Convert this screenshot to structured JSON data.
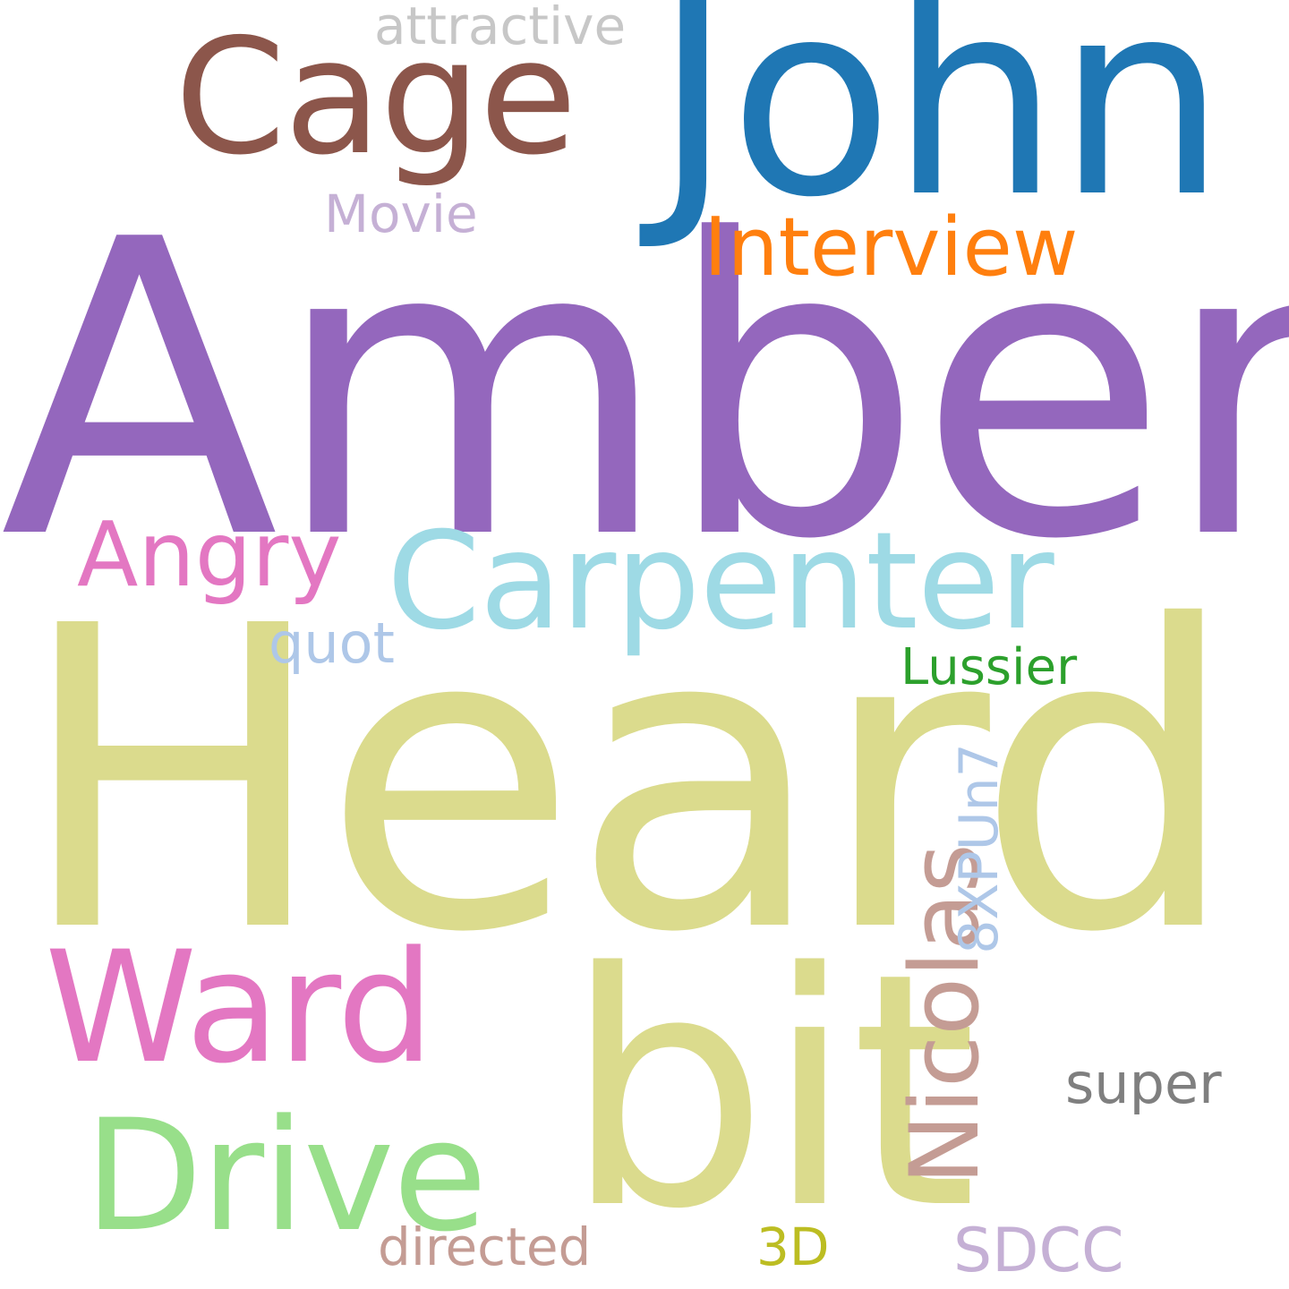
{
  "words": {
    "amber": {
      "text": "Amber",
      "color": "#9467bd"
    },
    "heard": {
      "text": "Heard",
      "color": "#dbdb8d"
    },
    "john": {
      "text": "John",
      "color": "#1f77b4"
    },
    "cage": {
      "text": "Cage",
      "color": "#8c564b"
    },
    "attractive": {
      "text": "attractive",
      "color": "#c7c7c7"
    },
    "movie": {
      "text": "Movie",
      "color": "#c5b0d5"
    },
    "interview": {
      "text": "Interview",
      "color": "#ff7f0e"
    },
    "angry": {
      "text": "Angry",
      "color": "#e377c2"
    },
    "carpenter": {
      "text": "Carpenter",
      "color": "#9edae5"
    },
    "quot": {
      "text": "quot",
      "color": "#aec7e8"
    },
    "lussier": {
      "text": "Lussier",
      "color": "#2ca02c"
    },
    "ward": {
      "text": "Ward",
      "color": "#e377c2"
    },
    "bit": {
      "text": "bit",
      "color": "#dbdb8d"
    },
    "drive": {
      "text": "Drive",
      "color": "#98df8a"
    },
    "nicolas": {
      "text": "Nicolas",
      "color": "#c49c94"
    },
    "8xpun7": {
      "text": "8XPUn7",
      "color": "#aec7e8"
    },
    "super": {
      "text": "super",
      "color": "#7f7f7f"
    },
    "directed": {
      "text": "directed",
      "color": "#c49c94"
    },
    "3d": {
      "text": "3D",
      "color": "#bcbd22"
    },
    "sdcc": {
      "text": "SDCC",
      "color": "#c5b0d5"
    }
  }
}
